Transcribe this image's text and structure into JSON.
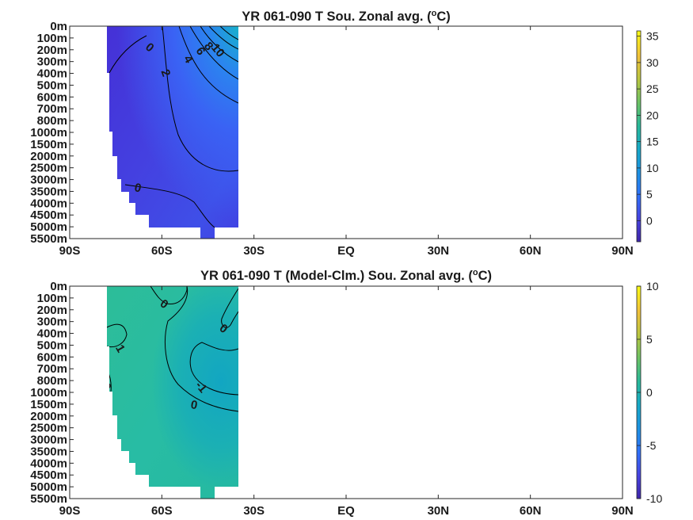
{
  "colors": {
    "frame": "#262626",
    "contour": "#000000",
    "colormap": [
      "#3e26a8",
      "#4743e1",
      "#2f71f9",
      "#1d92e2",
      "#0fae9a",
      "#44c05c",
      "#9fc93c",
      "#eebd3f",
      "#f9e41e",
      "#f9fb15"
    ]
  },
  "chart_data": [
    {
      "type": "heatmap",
      "title": "YR 061-090 T Sou. Zonal avg. (°C)",
      "title_parts": {
        "before": "YR 061-090 T Sou. Zonal avg. (",
        "superscript": "o",
        "after": "C)"
      },
      "x_ticks": [
        "90S",
        "60S",
        "30S",
        "EQ",
        "30N",
        "60N",
        "90N"
      ],
      "y_ticks": [
        "0m",
        "100m",
        "200m",
        "300m",
        "400m",
        "500m",
        "600m",
        "700m",
        "800m",
        "1000m",
        "1500m",
        "2000m",
        "2500m",
        "3000m",
        "3500m",
        "4000m",
        "4500m",
        "5000m",
        "5500m"
      ],
      "colorbar": {
        "range": [
          -4,
          36
        ],
        "ticks": [
          "35",
          "30",
          "25",
          "20",
          "15",
          "10",
          "5",
          "0"
        ],
        "tick_values": [
          35,
          30,
          25,
          20,
          15,
          10,
          5,
          0
        ]
      },
      "data_extent": {
        "lat": [
          -78,
          -34
        ]
      },
      "contour_labels": [
        "0",
        "2",
        "4",
        "6",
        "8",
        "10",
        "0"
      ]
    },
    {
      "type": "heatmap",
      "title": "YR 061-090 T (Model-Clm.) Sou. Zonal avg. (°C)",
      "title_parts": {
        "before": "YR 061-090 T (Model-Clm.) Sou. Zonal avg. (",
        "superscript": "o",
        "after": "C)"
      },
      "x_ticks": [
        "90S",
        "60S",
        "30S",
        "EQ",
        "30N",
        "60N",
        "90N"
      ],
      "y_ticks": [
        "0m",
        "100m",
        "200m",
        "300m",
        "400m",
        "500m",
        "600m",
        "700m",
        "800m",
        "1000m",
        "1500m",
        "2000m",
        "2500m",
        "3000m",
        "3500m",
        "4000m",
        "4500m",
        "5000m",
        "5500m"
      ],
      "colorbar": {
        "range": [
          -10,
          10
        ],
        "ticks": [
          "10",
          "5",
          "0",
          "-5",
          "-10"
        ],
        "tick_values": [
          10,
          5,
          0,
          -5,
          -10
        ]
      },
      "data_extent": {
        "lat": [
          -78,
          -34
        ]
      },
      "contour_labels": [
        "0",
        "0",
        "1",
        "0",
        "-1",
        "0"
      ]
    }
  ]
}
